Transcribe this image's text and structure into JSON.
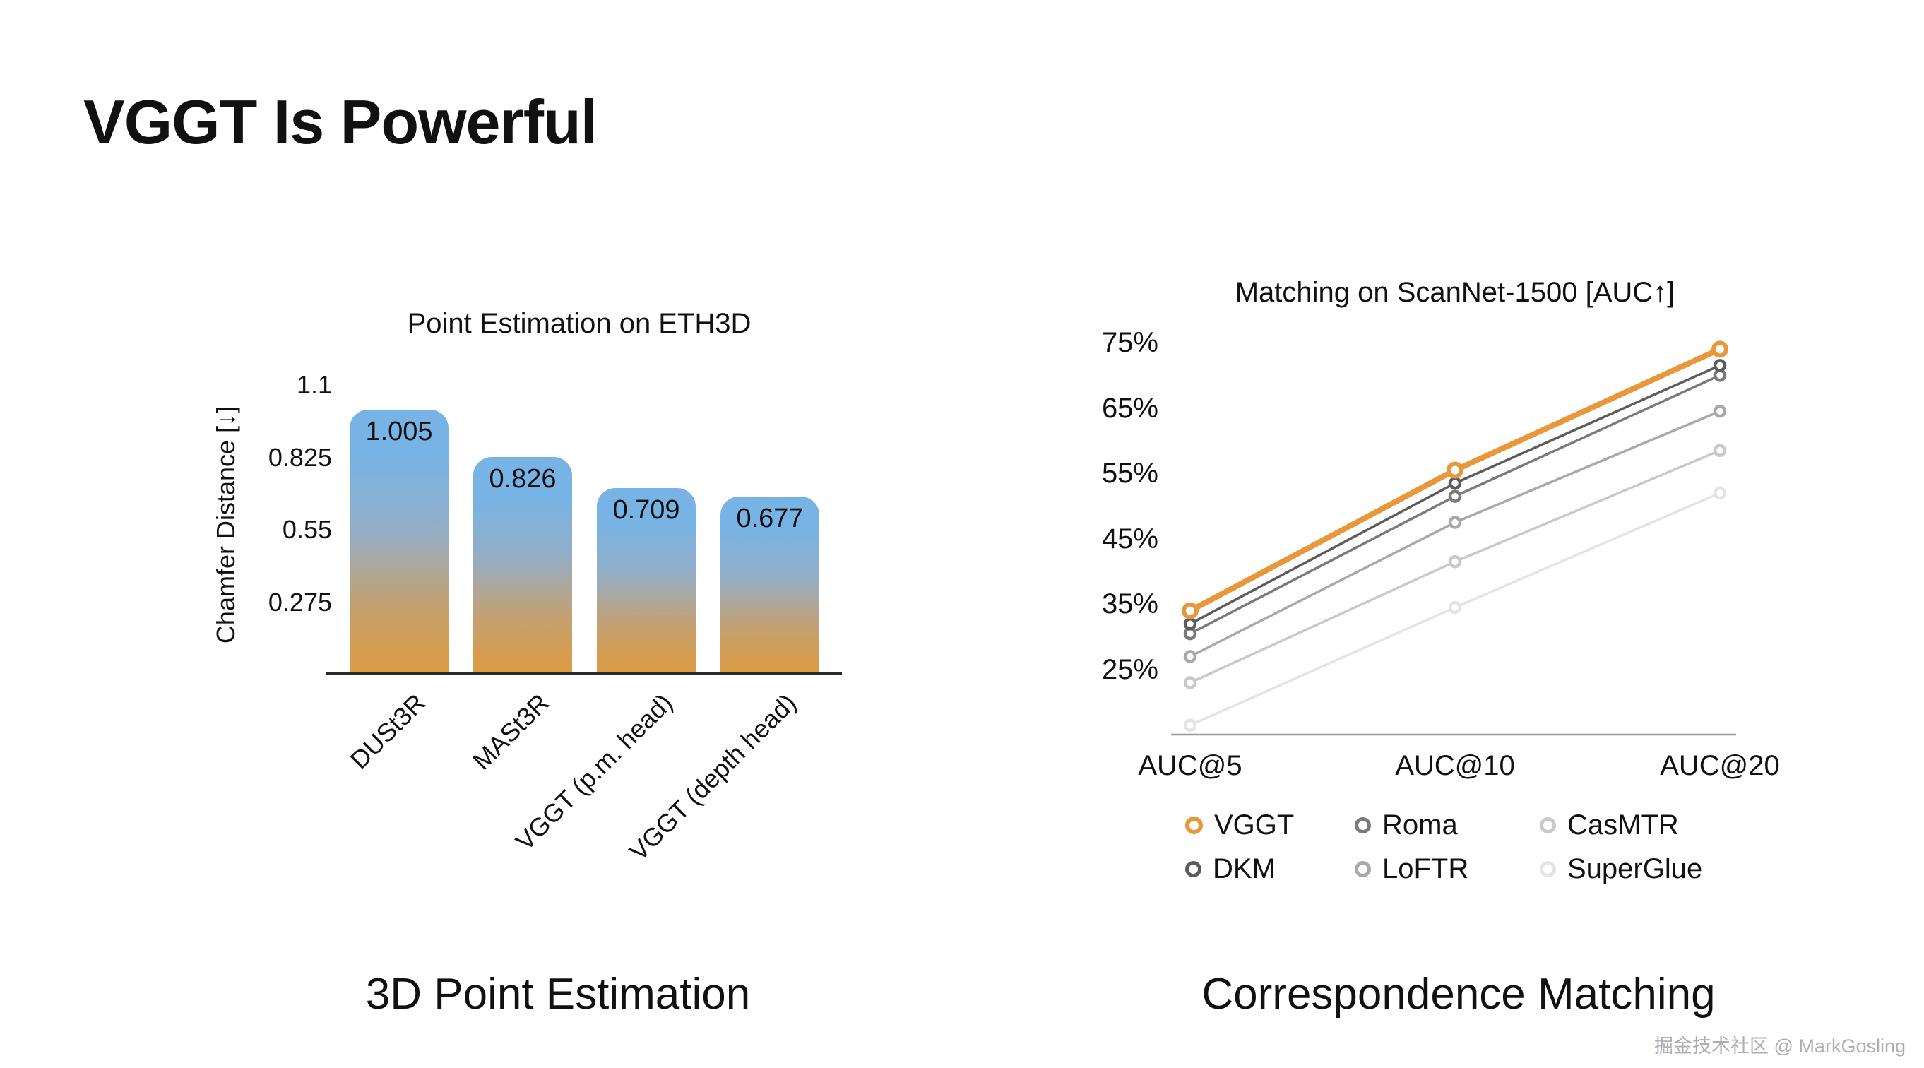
{
  "title": "VGGT Is Powerful",
  "watermark": "掘金技术社区 @ MarkGosling",
  "left_panel": {
    "caption": "3D Point Estimation"
  },
  "right_panel": {
    "caption": "Correspondence Matching"
  },
  "chart_data": [
    {
      "type": "bar",
      "title": "Point Estimation on ETH3D",
      "ylabel": "Chamfer Distance  [↓]",
      "categories": [
        "DUSt3R",
        "MASt3R",
        "VGGT (p.m. head)",
        "VGGT (depth head)"
      ],
      "values": [
        1.005,
        0.826,
        0.709,
        0.677
      ],
      "value_labels": [
        "1.005",
        "0.826",
        "0.709",
        "0.677"
      ],
      "yticks": [
        1.1,
        0.825,
        0.55,
        0.275
      ],
      "ylim": [
        0,
        1.1
      ],
      "grid": false,
      "bar_gradient_top": "#77b3e4",
      "bar_gradient_bottom": "#de9b41",
      "axis_color": "#2b2b2b"
    },
    {
      "type": "line",
      "title": "Matching on ScanNet-1500 [AUC↑]",
      "x_categories": [
        "AUC@5",
        "AUC@10",
        "AUC@20"
      ],
      "yticks_percent": [
        75,
        65,
        55,
        45,
        35,
        25
      ],
      "ylim_percent": [
        15,
        78
      ],
      "grid": false,
      "legend_position": "bottom",
      "axis_color": "#9a9a9a",
      "series": [
        {
          "name": "VGGT",
          "color": "#E8973A",
          "emphasis": true,
          "values": [
            34,
            55.5,
            74
          ]
        },
        {
          "name": "DKM",
          "color": "#5c5c5c",
          "emphasis": false,
          "values": [
            32,
            53.5,
            71.5
          ]
        },
        {
          "name": "Roma",
          "color": "#7a7a7a",
          "emphasis": false,
          "values": [
            30.5,
            51.5,
            70
          ]
        },
        {
          "name": "LoFTR",
          "color": "#a9a9a9",
          "emphasis": false,
          "values": [
            27,
            47.5,
            64.5
          ]
        },
        {
          "name": "CasMTR",
          "color": "#c9c9c9",
          "emphasis": false,
          "values": [
            23,
            41.5,
            58.5
          ]
        },
        {
          "name": "SuperGlue",
          "color": "#e4e4e4",
          "emphasis": false,
          "values": [
            16.5,
            34.5,
            52
          ]
        }
      ],
      "legend_order": [
        "VGGT",
        "Roma",
        "CasMTR",
        "DKM",
        "LoFTR",
        "SuperGlue"
      ]
    }
  ]
}
